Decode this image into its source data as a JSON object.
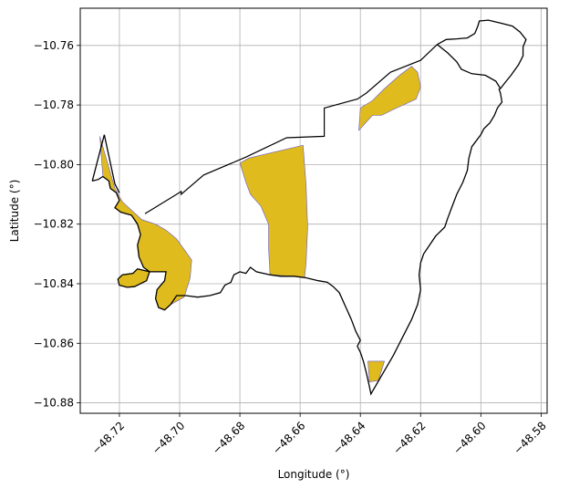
{
  "chart_data": {
    "type": "map",
    "title": "",
    "xlabel": "Longitude (°)",
    "ylabel": "Latitude (°)",
    "xlim": [
      -48.733,
      -48.578
    ],
    "ylim": [
      -10.8835,
      -10.7475
    ],
    "grid": true,
    "xticks": [
      -48.72,
      -48.7,
      -48.68,
      -48.66,
      -48.64,
      -48.62,
      -48.6,
      -48.58
    ],
    "xtick_labels": [
      "−48.72",
      "−48.70",
      "−48.68",
      "−48.66",
      "−48.64",
      "−48.62",
      "−48.60",
      "−48.58"
    ],
    "yticks": [
      -10.76,
      -10.78,
      -10.8,
      -10.82,
      -10.84,
      -10.86,
      -10.88
    ],
    "ytick_labels": [
      "−10.76",
      "−10.78",
      "−10.80",
      "−10.82",
      "−10.84",
      "−10.86",
      "−10.88"
    ],
    "colors": {
      "fill": "#dfbb1e",
      "fill_edge": "#6a5acd",
      "boundary": "#000000",
      "grid": "#b0b0b0"
    },
    "boundary": [
      [
        -48.6145,
        -10.7597
      ],
      [
        -48.611,
        -10.7625
      ],
      [
        -48.608,
        -10.7655
      ],
      [
        -48.6065,
        -10.768
      ],
      [
        -48.603,
        -10.7695
      ],
      [
        -48.5985,
        -10.77
      ],
      [
        -48.595,
        -10.772
      ],
      [
        -48.5935,
        -10.7745
      ],
      [
        -48.592,
        -10.7725
      ],
      [
        -48.59,
        -10.77
      ],
      [
        -48.5875,
        -10.7665
      ],
      [
        -48.586,
        -10.7635
      ],
      [
        -48.586,
        -10.7605
      ],
      [
        -48.585,
        -10.758
      ],
      [
        -48.587,
        -10.7555
      ],
      [
        -48.5895,
        -10.7535
      ],
      [
        -48.5935,
        -10.7525
      ],
      [
        -48.5975,
        -10.7515
      ],
      [
        -48.6005,
        -10.7518
      ],
      [
        -48.601,
        -10.7535
      ],
      [
        -48.602,
        -10.756
      ],
      [
        -48.6045,
        -10.7575
      ],
      [
        -48.608,
        -10.7578
      ],
      [
        -48.6115,
        -10.758
      ],
      [
        -48.6145,
        -10.7597
      ]
    ],
    "boundary_main": [
      [
        -48.729,
        -10.8055
      ],
      [
        -48.727,
        -10.805
      ],
      [
        -48.7255,
        -10.804
      ],
      [
        -48.7235,
        -10.8055
      ],
      [
        -48.723,
        -10.808
      ],
      [
        -48.721,
        -10.8095
      ],
      [
        -48.72,
        -10.812
      ],
      [
        -48.7215,
        -10.8145
      ],
      [
        -48.7195,
        -10.816
      ],
      [
        -48.716,
        -10.817
      ],
      [
        -48.714,
        -10.82
      ],
      [
        -48.713,
        -10.8235
      ],
      [
        -48.714,
        -10.827
      ],
      [
        -48.7135,
        -10.831
      ],
      [
        -48.712,
        -10.8345
      ],
      [
        -48.71,
        -10.836
      ],
      [
        -48.711,
        -10.839
      ],
      [
        -48.715,
        -10.841
      ],
      [
        -48.7175,
        -10.8412
      ],
      [
        -48.72,
        -10.8405
      ],
      [
        -48.7205,
        -10.8385
      ],
      [
        -48.719,
        -10.837
      ],
      [
        -48.7155,
        -10.8365
      ],
      [
        -48.714,
        -10.835
      ],
      [
        -48.71,
        -10.836
      ],
      [
        -48.7045,
        -10.836
      ],
      [
        -48.705,
        -10.839
      ],
      [
        -48.7075,
        -10.842
      ],
      [
        -48.708,
        -10.845
      ],
      [
        -48.707,
        -10.848
      ],
      [
        -48.705,
        -10.8488
      ],
      [
        -48.703,
        -10.847
      ],
      [
        -48.701,
        -10.844
      ],
      [
        -48.698,
        -10.844
      ],
      [
        -48.694,
        -10.8445
      ],
      [
        -48.69,
        -10.844
      ],
      [
        -48.6865,
        -10.843
      ],
      [
        -48.685,
        -10.8405
      ],
      [
        -48.683,
        -10.8395
      ],
      [
        -48.682,
        -10.837
      ],
      [
        -48.68,
        -10.836
      ],
      [
        -48.678,
        -10.8365
      ],
      [
        -48.6765,
        -10.8345
      ],
      [
        -48.6745,
        -10.836
      ],
      [
        -48.67,
        -10.837
      ],
      [
        -48.6665,
        -10.8375
      ],
      [
        -48.662,
        -10.8375
      ],
      [
        -48.658,
        -10.838
      ],
      [
        -48.654,
        -10.839
      ],
      [
        -48.651,
        -10.8395
      ],
      [
        -48.649,
        -10.841
      ],
      [
        -48.647,
        -10.843
      ],
      [
        -48.645,
        -10.8475
      ],
      [
        -48.643,
        -10.852
      ],
      [
        -48.6415,
        -10.856
      ],
      [
        -48.64,
        -10.859
      ],
      [
        -48.641,
        -10.861
      ],
      [
        -48.64,
        -10.863
      ],
      [
        -48.639,
        -10.866
      ],
      [
        -48.638,
        -10.87
      ],
      [
        -48.637,
        -10.8745
      ],
      [
        -48.6365,
        -10.877
      ],
      [
        -48.629,
        -10.864
      ],
      [
        -48.626,
        -10.858
      ],
      [
        -48.623,
        -10.852
      ],
      [
        -48.621,
        -10.847
      ],
      [
        -48.62,
        -10.842
      ],
      [
        -48.6205,
        -10.837
      ],
      [
        -48.62,
        -10.833
      ],
      [
        -48.619,
        -10.83
      ],
      [
        -48.617,
        -10.827
      ],
      [
        -48.615,
        -10.824
      ],
      [
        -48.612,
        -10.821
      ],
      [
        -48.611,
        -10.818
      ],
      [
        -48.6095,
        -10.814
      ],
      [
        -48.608,
        -10.81
      ],
      [
        -48.606,
        -10.806
      ],
      [
        -48.6045,
        -10.802
      ],
      [
        -48.604,
        -10.798
      ],
      [
        -48.603,
        -10.794
      ],
      [
        -48.6,
        -10.79
      ],
      [
        -48.599,
        -10.788
      ],
      [
        -48.597,
        -10.786
      ],
      [
        -48.5955,
        -10.7835
      ],
      [
        -48.5945,
        -10.781
      ],
      [
        -48.593,
        -10.779
      ],
      [
        -48.5935,
        -10.776
      ],
      [
        -48.594,
        -10.7745
      ]
    ],
    "boundary_line": [
      [
        -48.7115,
        -10.8165
      ],
      [
        -48.701,
        -10.81
      ],
      [
        -48.6995,
        -10.809
      ],
      [
        -48.6995,
        -10.81
      ],
      [
        -48.692,
        -10.8035
      ],
      [
        -48.678,
        -10.7975
      ],
      [
        -48.6645,
        -10.791
      ],
      [
        -48.652,
        -10.7905
      ],
      [
        -48.652,
        -10.781
      ],
      [
        -48.641,
        -10.778
      ],
      [
        -48.638,
        -10.776
      ],
      [
        -48.63,
        -10.769
      ],
      [
        -48.62,
        -10.765
      ],
      [
        -48.6145,
        -10.7597
      ]
    ],
    "boundary_spike": [
      [
        -48.729,
        -10.8055
      ],
      [
        -48.725,
        -10.79
      ],
      [
        -48.7215,
        -10.8065
      ],
      [
        -48.72,
        -10.8095
      ]
    ],
    "regions": [
      {
        "polygon": [
          [
            -48.7265,
            -10.7905
          ],
          [
            -48.7215,
            -10.808
          ],
          [
            -48.719,
            -10.8125
          ],
          [
            -48.7125,
            -10.8185
          ],
          [
            -48.708,
            -10.82
          ],
          [
            -48.7045,
            -10.822
          ],
          [
            -48.701,
            -10.825
          ],
          [
            -48.6985,
            -10.8285
          ],
          [
            -48.696,
            -10.832
          ],
          [
            -48.6965,
            -10.838
          ],
          [
            -48.6985,
            -10.8445
          ],
          [
            -48.703,
            -10.847
          ],
          [
            -48.705,
            -10.8488
          ],
          [
            -48.707,
            -10.848
          ],
          [
            -48.708,
            -10.845
          ],
          [
            -48.7075,
            -10.842
          ],
          [
            -48.705,
            -10.839
          ],
          [
            -48.7045,
            -10.836
          ],
          [
            -48.71,
            -10.836
          ],
          [
            -48.714,
            -10.835
          ],
          [
            -48.7155,
            -10.8365
          ],
          [
            -48.719,
            -10.837
          ],
          [
            -48.7205,
            -10.8385
          ],
          [
            -48.72,
            -10.8405
          ],
          [
            -48.7175,
            -10.8412
          ],
          [
            -48.715,
            -10.841
          ],
          [
            -48.711,
            -10.839
          ],
          [
            -48.71,
            -10.836
          ],
          [
            -48.712,
            -10.8345
          ],
          [
            -48.7135,
            -10.831
          ],
          [
            -48.714,
            -10.827
          ],
          [
            -48.713,
            -10.8235
          ],
          [
            -48.714,
            -10.82
          ],
          [
            -48.716,
            -10.817
          ],
          [
            -48.7195,
            -10.816
          ],
          [
            -48.7215,
            -10.8145
          ],
          [
            -48.72,
            -10.812
          ],
          [
            -48.721,
            -10.8095
          ],
          [
            -48.723,
            -10.808
          ],
          [
            -48.7235,
            -10.8055
          ],
          [
            -48.7255,
            -10.804
          ],
          [
            -48.7265,
            -10.7905
          ]
        ]
      },
      {
        "polygon": [
          [
            -48.68,
            -10.7995
          ],
          [
            -48.677,
            -10.7978
          ],
          [
            -48.659,
            -10.7935
          ],
          [
            -48.658,
            -10.807
          ],
          [
            -48.6575,
            -10.821
          ],
          [
            -48.658,
            -10.833
          ],
          [
            -48.6585,
            -10.8378
          ],
          [
            -48.67,
            -10.837
          ],
          [
            -48.6705,
            -10.828
          ],
          [
            -48.6705,
            -10.82
          ],
          [
            -48.673,
            -10.814
          ],
          [
            -48.6765,
            -10.81
          ],
          [
            -48.678,
            -10.806
          ],
          [
            -48.68,
            -10.7995
          ]
        ]
      },
      {
        "polygon": [
          [
            -48.6405,
            -10.7885
          ],
          [
            -48.64,
            -10.781
          ],
          [
            -48.636,
            -10.7785
          ],
          [
            -48.632,
            -10.7745
          ],
          [
            -48.627,
            -10.77
          ],
          [
            -48.623,
            -10.767
          ],
          [
            -48.621,
            -10.769
          ],
          [
            -48.62,
            -10.774
          ],
          [
            -48.6215,
            -10.778
          ],
          [
            -48.629,
            -10.7815
          ],
          [
            -48.633,
            -10.7835
          ],
          [
            -48.636,
            -10.7835
          ],
          [
            -48.6405,
            -10.7885
          ]
        ]
      },
      {
        "polygon": [
          [
            -48.6375,
            -10.866
          ],
          [
            -48.632,
            -10.866
          ],
          [
            -48.634,
            -10.8725
          ],
          [
            -48.637,
            -10.873
          ],
          [
            -48.6375,
            -10.866
          ]
        ]
      }
    ]
  }
}
